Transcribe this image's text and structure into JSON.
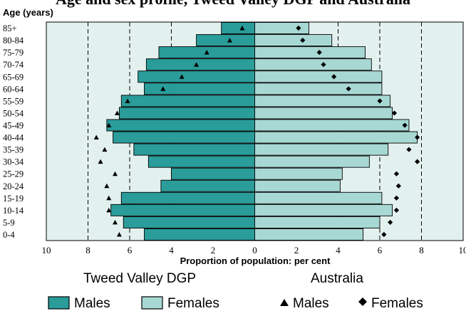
{
  "title_partial": "Age and sex profile, Tweed Valley DGP and Australia",
  "chart_data": {
    "type": "bar",
    "orientation": "horizontal-population-pyramid",
    "y_axis_title": "Age (years)",
    "xlabel": "Proportion of population: per cent",
    "xlim": [
      -10,
      10
    ],
    "x_ticks": [
      10,
      8,
      6,
      4,
      2,
      0,
      2,
      4,
      6,
      8,
      10
    ],
    "categories": [
      "85+",
      "80-84",
      "75-79",
      "70-74",
      "65-69",
      "60-64",
      "55-59",
      "50-54",
      "45-49",
      "40-44",
      "35-39",
      "30-34",
      "25-29",
      "20-24",
      "15-19",
      "10-14",
      "5-9",
      "0-4"
    ],
    "series": [
      {
        "name": "Males",
        "group": "Tweed Valley DGP",
        "mark": "bar",
        "side": "left",
        "color": "#2a9c9a",
        "values": [
          1.6,
          2.8,
          4.6,
          5.2,
          5.6,
          5.3,
          6.4,
          6.5,
          7.1,
          6.8,
          5.8,
          5.1,
          4.0,
          4.5,
          6.4,
          6.9,
          6.3,
          5.3
        ]
      },
      {
        "name": "Females",
        "group": "Tweed Valley DGP",
        "mark": "bar",
        "side": "right",
        "color": "#a8d8d4",
        "values": [
          2.6,
          3.7,
          5.3,
          5.6,
          6.1,
          6.1,
          6.5,
          6.6,
          7.4,
          7.8,
          6.4,
          5.5,
          4.2,
          4.1,
          6.1,
          6.6,
          6.0,
          5.2
        ]
      },
      {
        "name": "Males",
        "group": "Australia",
        "mark": "triangle",
        "side": "left",
        "values": [
          0.6,
          1.2,
          2.3,
          2.8,
          3.5,
          4.4,
          6.1,
          6.6,
          7.0,
          7.6,
          7.2,
          7.4,
          6.7,
          7.1,
          7.0,
          7.0,
          6.7,
          6.5
        ]
      },
      {
        "name": "Females",
        "group": "Australia",
        "mark": "diamond",
        "side": "right",
        "values": [
          2.1,
          2.3,
          3.1,
          3.3,
          3.8,
          4.5,
          6.0,
          6.7,
          7.2,
          7.8,
          7.4,
          7.8,
          6.8,
          6.9,
          6.8,
          6.8,
          6.5,
          6.2
        ]
      }
    ],
    "grid": "dashed vertical lines at 4, 6 and 8 per cent"
  },
  "legend": {
    "group_left": "Tweed Valley DGP",
    "group_right": "Australia",
    "males": "Males",
    "females": "Females",
    "aus_males": "Males",
    "aus_females": "Females"
  },
  "colors": {
    "plot_background": "#e3f1ee",
    "male_bar": "#2a9c9a",
    "female_bar": "#a8d8d4",
    "outline": "#000000"
  }
}
